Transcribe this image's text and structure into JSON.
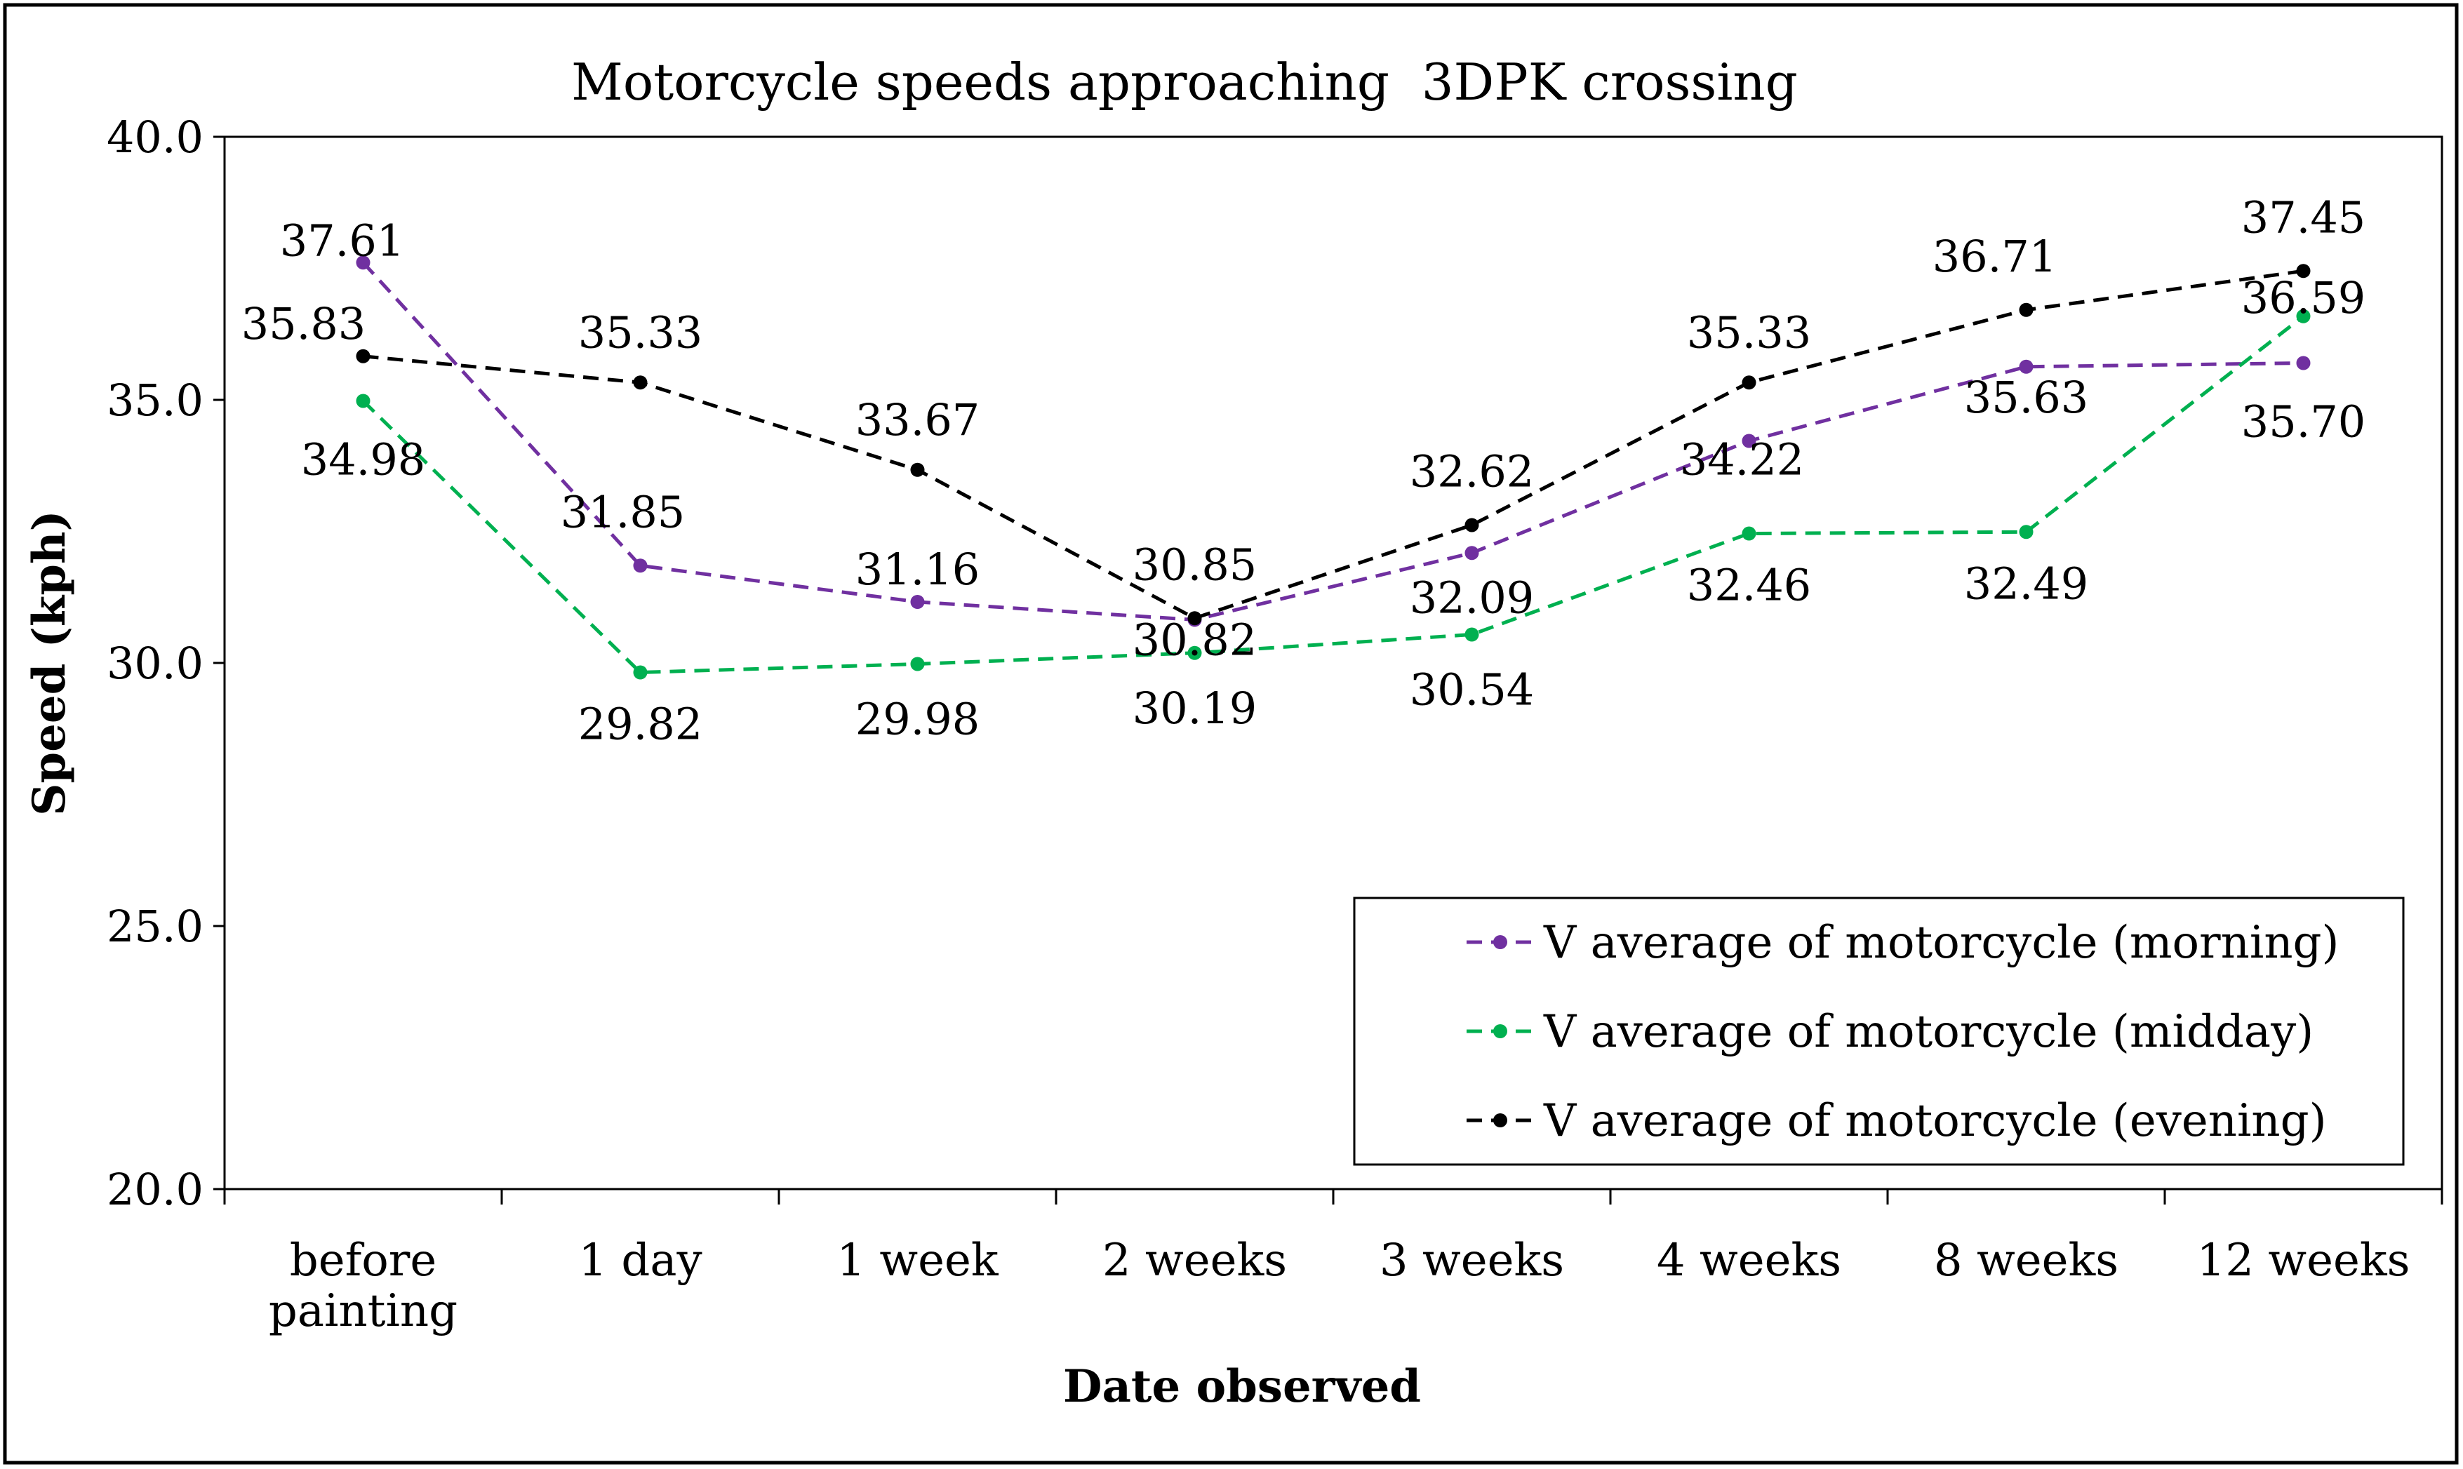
{
  "chart_data": {
    "type": "line",
    "title": "Motorcycle speeds approaching  3DPK crossing",
    "xlabel": "Date observed",
    "ylabel": "Speed (kph)",
    "ylim": [
      20.0,
      40.0
    ],
    "yticks": [
      "20.0",
      "25.0",
      "30.0",
      "35.0",
      "40.0"
    ],
    "categories": [
      [
        "before",
        "painting"
      ],
      [
        "1 day"
      ],
      [
        "1 week"
      ],
      [
        "2 weeks"
      ],
      [
        "3 weeks"
      ],
      [
        "4 weeks"
      ],
      [
        "8 weeks"
      ],
      [
        "12 weeks"
      ]
    ],
    "series": [
      {
        "name": "V average of motorcycle (morning)",
        "color": "#7030a0",
        "values": [
          37.61,
          31.85,
          31.16,
          30.82,
          32.09,
          34.22,
          35.63,
          35.7
        ],
        "labels": [
          "37.61",
          "31.85",
          "31.16",
          "30.82",
          "32.09",
          "34.22",
          "35.63",
          "35.70"
        ]
      },
      {
        "name": "V average of motorcycle (midday)",
        "color": "#00b050",
        "values": [
          34.98,
          29.82,
          29.98,
          30.19,
          30.54,
          32.46,
          32.49,
          36.59
        ],
        "labels": [
          "34.98",
          "29.82",
          "29.98",
          "30.19",
          "30.54",
          "32.46",
          "32.49",
          "36.59"
        ]
      },
      {
        "name": "V average of motorcycle (evening)",
        "color": "#000000",
        "values": [
          35.83,
          35.33,
          33.67,
          30.85,
          32.62,
          35.33,
          36.71,
          37.45
        ],
        "labels": [
          "35.83",
          "35.33",
          "33.67",
          "30.85",
          "32.62",
          "35.33",
          "36.71",
          "37.45"
        ]
      }
    ],
    "legend": "inside-bottom-right",
    "grid": false
  }
}
